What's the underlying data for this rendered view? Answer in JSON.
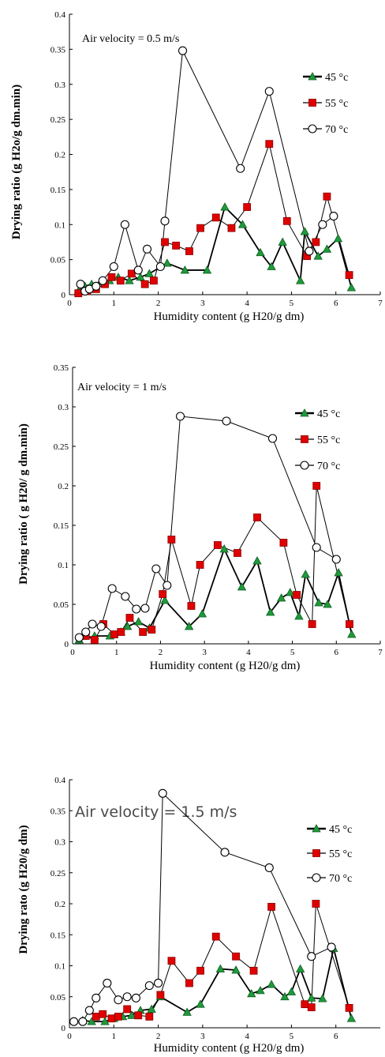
{
  "colors": {
    "s45": "#1f9a3a",
    "s55": "#e00000",
    "s70": "#ffffff",
    "axis": "#000000",
    "line": "#000000"
  },
  "chart_data": [
    {
      "type": "line",
      "annotation": "Air velocity = 0.5 m/s",
      "xlabel": "Humidity content (g H20/g dm)",
      "ylabel": "Drying ratio (g H2o/g dm.min)",
      "xlim": [
        0,
        7
      ],
      "ylim": [
        0,
        0.4
      ],
      "xticks": [
        "0",
        "1",
        "2",
        "3",
        "4",
        "5",
        "6",
        "7"
      ],
      "yticks": [
        "0",
        "0.05",
        "0.1",
        "0.15",
        "0.2",
        "0.25",
        "0.3",
        "0.35",
        "0.4"
      ],
      "legend_position": "top-right",
      "series": [
        {
          "name": "45 °c",
          "marker": "triangle",
          "x": [
            0.2,
            0.35,
            0.5,
            0.7,
            0.9,
            1.1,
            1.35,
            1.6,
            1.8,
            2.2,
            2.6,
            3.1,
            3.5,
            3.9,
            4.3,
            4.55,
            4.8,
            5.2,
            5.3,
            5.6,
            5.8,
            6.05,
            6.35
          ],
          "y": [
            0.005,
            0.012,
            0.015,
            0.018,
            0.02,
            0.025,
            0.02,
            0.025,
            0.03,
            0.045,
            0.035,
            0.035,
            0.125,
            0.1,
            0.06,
            0.04,
            0.075,
            0.02,
            0.09,
            0.055,
            0.065,
            0.08,
            0.01
          ]
        },
        {
          "name": "55 °c",
          "marker": "square",
          "x": [
            0.2,
            0.4,
            0.6,
            0.8,
            0.95,
            1.15,
            1.4,
            1.7,
            1.9,
            2.15,
            2.4,
            2.7,
            2.95,
            3.3,
            3.65,
            4,
            4.5,
            4.9,
            5.35,
            5.55,
            5.8,
            6.3
          ],
          "y": [
            0.002,
            0.005,
            0.008,
            0.015,
            0.025,
            0.02,
            0.03,
            0.015,
            0.02,
            0.075,
            0.07,
            0.062,
            0.095,
            0.11,
            0.095,
            0.125,
            0.215,
            0.105,
            0.055,
            0.075,
            0.14,
            0.028
          ]
        },
        {
          "name": "70 °c",
          "marker": "circle",
          "x": [
            0.25,
            0.35,
            0.45,
            0.6,
            0.75,
            1.0,
            1.25,
            1.55,
            1.75,
            2.05,
            2.15,
            2.55,
            3.85,
            4.5,
            5.4,
            5.7,
            5.95
          ],
          "y": [
            0.015,
            0.005,
            0.008,
            0.012,
            0.02,
            0.04,
            0.1,
            0.035,
            0.065,
            0.04,
            0.105,
            0.348,
            0.18,
            0.29,
            0.062,
            0.1,
            0.112
          ]
        }
      ]
    },
    {
      "type": "line",
      "annotation": "Air velocity = 1 m/s",
      "xlabel": "Humidity content (g H20/g dm)",
      "ylabel": "Drying ratio ( g H20/ g dm.min)",
      "xlim": [
        0,
        7
      ],
      "ylim": [
        0,
        0.35
      ],
      "xticks": [
        "0",
        "1",
        "2",
        "3",
        "4",
        "5",
        "6",
        "7"
      ],
      "yticks": [
        "0",
        "0.05",
        "0.1",
        "0.15",
        "0.2",
        "0.25",
        "0.3",
        "0.35"
      ],
      "legend_position": "top-right",
      "series": [
        {
          "name": "45 °c",
          "marker": "triangle",
          "x": [
            0.15,
            0.5,
            0.85,
            1.1,
            1.25,
            1.5,
            1.75,
            2.1,
            2.65,
            2.95,
            3.45,
            3.85,
            4.2,
            4.5,
            4.75,
            4.95,
            5.15,
            5.3,
            5.6,
            5.8,
            6.05,
            6.35
          ],
          "y": [
            0.005,
            0.01,
            0.01,
            0.015,
            0.022,
            0.028,
            0.02,
            0.055,
            0.022,
            0.038,
            0.12,
            0.072,
            0.105,
            0.04,
            0.058,
            0.065,
            0.035,
            0.088,
            0.052,
            0.05,
            0.09,
            0.012
          ]
        },
        {
          "name": "55 °c",
          "marker": "square",
          "x": [
            0.3,
            0.5,
            0.7,
            0.95,
            1.1,
            1.3,
            1.6,
            1.8,
            2.05,
            2.25,
            2.7,
            2.9,
            3.3,
            3.75,
            4.2,
            4.8,
            5.1,
            5.45,
            5.55,
            6.3
          ],
          "y": [
            0.01,
            0.005,
            0.025,
            0.012,
            0.015,
            0.033,
            0.015,
            0.018,
            0.063,
            0.132,
            0.048,
            0.1,
            0.125,
            0.115,
            0.16,
            0.128,
            0.062,
            0.025,
            0.2,
            0.025
          ]
        },
        {
          "name": "70 °c",
          "marker": "circle",
          "x": [
            0.15,
            0.3,
            0.45,
            0.65,
            0.9,
            1.2,
            1.45,
            1.65,
            1.9,
            2.15,
            2.45,
            3.5,
            4.55,
            5.55,
            6.0
          ],
          "y": [
            0.008,
            0.015,
            0.025,
            0.022,
            0.07,
            0.06,
            0.044,
            0.045,
            0.095,
            0.074,
            0.288,
            0.282,
            0.26,
            0.122,
            0.107
          ]
        }
      ]
    },
    {
      "type": "line",
      "annotation": "Air velocity = 1.5 m/s",
      "xlabel": "Humidity content (g H20/g dm)",
      "ylabel": "Drying rato (g H20/g dm)",
      "xlim": [
        0,
        7
      ],
      "ylim": [
        0,
        0.4
      ],
      "xticks": [
        "0",
        "1",
        "2",
        "3",
        "4",
        "5",
        "6"
      ],
      "yticks": [
        "0",
        "0.05",
        "0.1",
        "0.15",
        "0.2",
        "0.25",
        "0.3",
        "0.35",
        "0.4"
      ],
      "legend_position": "top-right",
      "series": [
        {
          "name": "45 °c",
          "marker": "triangle",
          "x": [
            0.3,
            0.5,
            0.8,
            1.0,
            1.2,
            1.4,
            1.6,
            1.85,
            2.05,
            2.65,
            2.95,
            3.4,
            3.75,
            4.1,
            4.3,
            4.55,
            4.85,
            5.0,
            5.2,
            5.45,
            5.7,
            5.95,
            6.35
          ],
          "y": [
            0.012,
            0.01,
            0.01,
            0.015,
            0.018,
            0.02,
            0.028,
            0.03,
            0.05,
            0.025,
            0.038,
            0.095,
            0.093,
            0.055,
            0.06,
            0.07,
            0.05,
            0.058,
            0.095,
            0.048,
            0.047,
            0.128,
            0.015
          ]
        },
        {
          "name": "55 °c",
          "marker": "square",
          "x": [
            0.6,
            0.75,
            0.95,
            1.1,
            1.3,
            1.55,
            1.8,
            2.05,
            2.3,
            2.7,
            2.95,
            3.3,
            3.75,
            4.15,
            4.55,
            5.3,
            5.45,
            5.55,
            6.3
          ],
          "y": [
            0.018,
            0.022,
            0.015,
            0.018,
            0.03,
            0.02,
            0.018,
            0.053,
            0.108,
            0.072,
            0.092,
            0.147,
            0.115,
            0.092,
            0.195,
            0.038,
            0.033,
            0.2,
            0.032
          ]
        },
        {
          "name": "70 °c",
          "marker": "circle",
          "x": [
            0.1,
            0.3,
            0.45,
            0.6,
            0.85,
            1.1,
            1.3,
            1.5,
            1.8,
            2.0,
            2.1,
            3.5,
            4.5,
            5.45,
            5.9
          ],
          "y": [
            0.01,
            0.01,
            0.028,
            0.048,
            0.072,
            0.045,
            0.05,
            0.048,
            0.068,
            0.072,
            0.378,
            0.283,
            0.258,
            0.115,
            0.13
          ]
        }
      ]
    }
  ]
}
